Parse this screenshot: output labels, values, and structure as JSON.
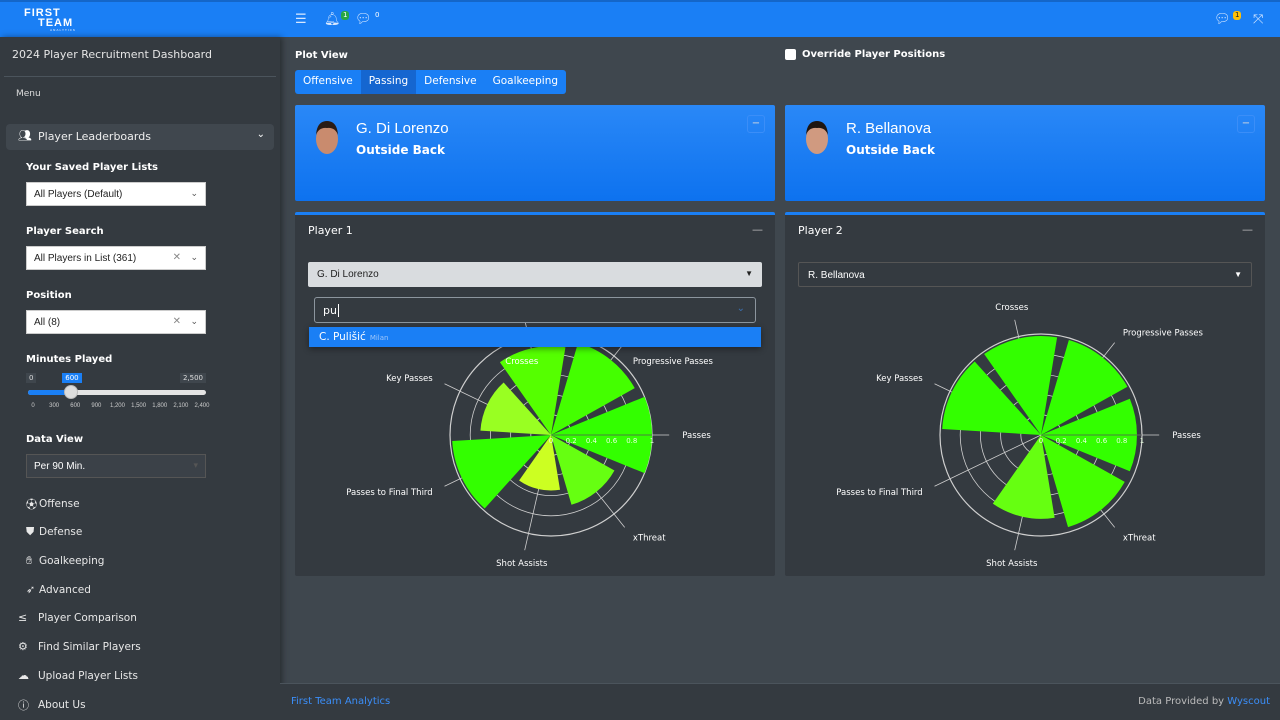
{
  "brand": {
    "logo_line1": "FIRST",
    "logo_line2": "TEAM",
    "logo_line3": "ANALYTICS"
  },
  "topbar": {
    "notifications_count": "1",
    "messages_count": "0",
    "chat_count": "1"
  },
  "sidebar": {
    "title": "2024 Player Recruitment Dashboard",
    "menu_header": "Menu",
    "leaderboards_label": "Player Leaderboards",
    "saved_lists_label": "Your Saved Player Lists",
    "saved_lists_value": "All Players (Default)",
    "player_search_label": "Player Search",
    "player_search_value": "All Players in List (361)",
    "position_label": "Position",
    "position_value": "All (8)",
    "minutes_label": "Minutes Played",
    "minutes": {
      "min": "0",
      "max": "2,500",
      "value": 600,
      "value_label": "600",
      "ticks": [
        "0",
        "300",
        "600",
        "900",
        "1,200",
        "1,500",
        "1,800",
        "2,100",
        "2,400"
      ]
    },
    "data_view_label": "Data View",
    "data_view_value": "Per 90 Min.",
    "sub_items": [
      {
        "label": "Offense",
        "icon": "futbol-icon"
      },
      {
        "label": "Defense",
        "icon": "shield-icon"
      },
      {
        "label": "Goalkeeping",
        "icon": "hand-icon"
      },
      {
        "label": "Advanced",
        "icon": "rocket-icon"
      }
    ],
    "items": [
      {
        "label": "Player Comparison",
        "icon": "less-equal-icon"
      },
      {
        "label": "Find Similar Players",
        "icon": "gears-icon"
      },
      {
        "label": "Upload Player Lists",
        "icon": "cloud-upload-icon"
      },
      {
        "label": "About Us",
        "icon": "info-icon"
      }
    ]
  },
  "main": {
    "plot_view_label": "Plot View",
    "override_label": "Override Player Positions",
    "tabs": [
      "Offensive",
      "Passing",
      "Defensive",
      "Goalkeeping"
    ],
    "active_tab": "Passing",
    "players": [
      {
        "name": "G. Di Lorenzo",
        "position": "Outside Back",
        "card_title": "Player 1",
        "select_value": "G. Di Lorenzo"
      },
      {
        "name": "R. Bellanova",
        "position": "Outside Back",
        "card_title": "Player 2",
        "select_value": "R. Bellanova"
      }
    ],
    "search": {
      "typed": "pu",
      "option_name": "C. Pulišić",
      "option_club": "Milan"
    }
  },
  "chart_data": [
    {
      "type": "polar-bar",
      "categories": [
        "Passes",
        "Progressive Passes",
        "Crosses",
        "Key Passes",
        "Passes to Final Third",
        "Shot Assists",
        "xThreat"
      ],
      "values": [
        1.0,
        0.95,
        0.88,
        0.7,
        0.98,
        0.55,
        0.72
      ],
      "colors": [
        "#33ff00",
        "#44ff00",
        "#55ff00",
        "#99ff22",
        "#33ff00",
        "#ccff22",
        "#66ff11"
      ],
      "radial_ticks": [
        "0",
        "0.2",
        "0.4",
        "0.6",
        "0.8",
        "1"
      ],
      "rlim": [
        0,
        1
      ]
    },
    {
      "type": "polar-bar",
      "categories": [
        "Passes",
        "Progressive Passes",
        "Crosses",
        "Key Passes",
        "Passes to Final Third",
        "Shot Assists",
        "xThreat"
      ],
      "values": [
        0.95,
        0.98,
        0.98,
        0.98,
        0,
        0.83,
        0.95
      ],
      "colors": [
        "#33ff00",
        "#33ff00",
        "#33ff00",
        "#33ff00",
        "#33ff00",
        "#66ff11",
        "#44ff00"
      ],
      "radial_ticks": [
        "0",
        "0.2",
        "0.4",
        "0.6",
        "0.8",
        "1"
      ],
      "rlim": [
        0,
        1
      ]
    }
  ],
  "footer": {
    "left": "First Team Analytics",
    "right_prefix": "Data Provided by",
    "right_link": "Wyscout"
  }
}
